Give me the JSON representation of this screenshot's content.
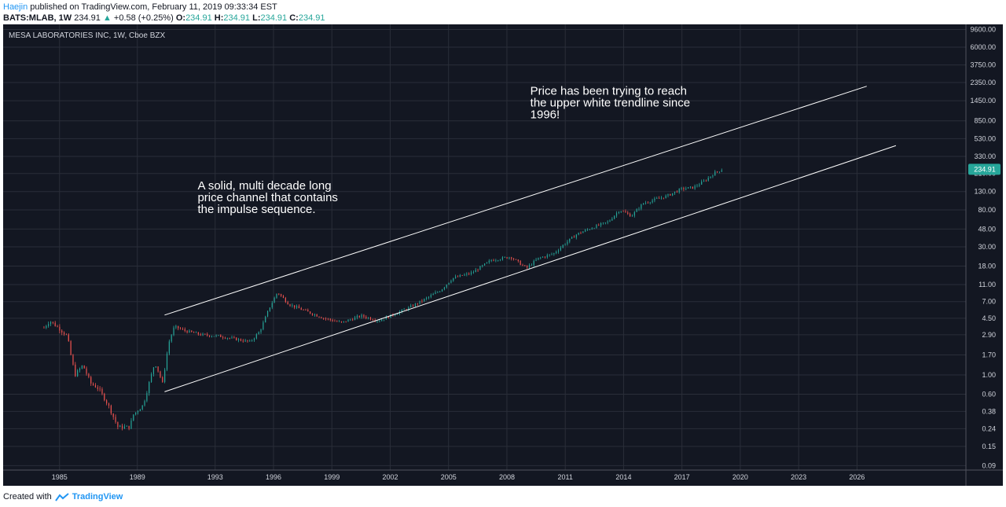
{
  "header": {
    "author": "Haejin",
    "published_text": "published on TradingView.com, February 11, 2019 09:33:34 EST",
    "symbol": "BATS:MLAB, 1W",
    "last_price": "234.91",
    "change": "+0.58 (+0.25%)",
    "open_label": "O:",
    "open_value": "234.91",
    "high_label": "H:",
    "high_value": "234.91",
    "low_label": "L:",
    "low_value": "234.91",
    "close_label": "C:",
    "close_value": "234.91"
  },
  "footer": {
    "created_with": "Created with",
    "brand": "TradingView",
    "logo_icon": "tradingview-logo-icon"
  },
  "colors": {
    "background": "#131722",
    "grid": "#2a2e39",
    "up": "#26a69a",
    "down": "#ef5350",
    "trendline": "#ffffff",
    "price_badge": "#26a69a"
  },
  "chart_data": {
    "type": "candlestick",
    "title": "MESA LABORATORIES INC, 1W, Cboe BZX",
    "y_scale": "log",
    "ylim": [
      0.08,
      11000
    ],
    "xlim": [
      1982.1,
      2031.6
    ],
    "grid": true,
    "y_ticks": [
      "9600.00",
      "6000.00",
      "3750.00",
      "2350.00",
      "1450.00",
      "850.00",
      "530.00",
      "330.00",
      "210.00",
      "130.00",
      "80.00",
      "48.00",
      "30.00",
      "18.00",
      "11.00",
      "7.00",
      "4.50",
      "2.90",
      "1.70",
      "1.00",
      "0.60",
      "0.38",
      "0.24",
      "0.15",
      "0.09"
    ],
    "x_ticks": [
      "1985",
      "1989",
      "1993",
      "1996",
      "1999",
      "2002",
      "2005",
      "2008",
      "2011",
      "2014",
      "2017",
      "2020",
      "2023",
      "2026"
    ],
    "current_price": "234.91",
    "price_path": [
      [
        1984.2,
        3.5
      ],
      [
        1984.5,
        4.2
      ],
      [
        1985.0,
        3.4
      ],
      [
        1985.4,
        2.8
      ],
      [
        1985.6,
        1.6
      ],
      [
        1985.8,
        1.0
      ],
      [
        1986.2,
        1.3
      ],
      [
        1986.6,
        0.8
      ],
      [
        1987.0,
        0.7
      ],
      [
        1987.5,
        0.45
      ],
      [
        1988.0,
        0.25
      ],
      [
        1988.6,
        0.25
      ],
      [
        1988.8,
        0.35
      ],
      [
        1989.3,
        0.45
      ],
      [
        1989.6,
        0.8
      ],
      [
        1989.9,
        1.4
      ],
      [
        1990.3,
        0.8
      ],
      [
        1990.6,
        2.3
      ],
      [
        1990.9,
        3.6
      ],
      [
        1991.5,
        3.2
      ],
      [
        1992.3,
        2.9
      ],
      [
        1993.2,
        2.8
      ],
      [
        1994.0,
        2.6
      ],
      [
        1994.8,
        2.4
      ],
      [
        1995.3,
        3.2
      ],
      [
        1995.8,
        6.0
      ],
      [
        1996.2,
        9.0
      ],
      [
        1996.8,
        6.5
      ],
      [
        1997.6,
        5.5
      ],
      [
        1998.6,
        4.5
      ],
      [
        1999.5,
        4.0
      ],
      [
        2000.5,
        4.8
      ],
      [
        2001.4,
        4.2
      ],
      [
        2002.2,
        5.0
      ],
      [
        2003.0,
        6.0
      ],
      [
        2003.8,
        7.5
      ],
      [
        2004.6,
        9.5
      ],
      [
        2005.2,
        13.0
      ],
      [
        2006.2,
        15.0
      ],
      [
        2007.2,
        21.0
      ],
      [
        2008.2,
        23.0
      ],
      [
        2009.0,
        17.0
      ],
      [
        2009.6,
        22.0
      ],
      [
        2010.4,
        25.0
      ],
      [
        2011.0,
        33.0
      ],
      [
        2011.6,
        42.0
      ],
      [
        2012.4,
        50.0
      ],
      [
        2013.2,
        58.0
      ],
      [
        2013.8,
        80.0
      ],
      [
        2014.4,
        68.0
      ],
      [
        2015.0,
        95.0
      ],
      [
        2015.6,
        105.0
      ],
      [
        2016.2,
        115.0
      ],
      [
        2017.0,
        140.0
      ],
      [
        2017.6,
        145.0
      ],
      [
        2018.2,
        175.0
      ],
      [
        2018.7,
        215.0
      ],
      [
        2019.1,
        234.91
      ]
    ],
    "trendlines": [
      {
        "name": "upper",
        "start": [
          1990.4,
          4.9
        ],
        "end": [
          2026.5,
          2130
        ]
      },
      {
        "name": "lower",
        "start": [
          1990.4,
          0.64
        ],
        "end": [
          2028.0,
          440
        ]
      }
    ],
    "annotations": [
      {
        "lines": [
          "A solid, multi decade long",
          "price channel that contains",
          "the impulse sequence."
        ],
        "anchor": [
          1992.1,
          138
        ]
      },
      {
        "lines": [
          "Price has been trying to reach",
          "the upper white trendline since",
          "1996!"
        ],
        "anchor": [
          2009.2,
          1700
        ]
      }
    ]
  }
}
